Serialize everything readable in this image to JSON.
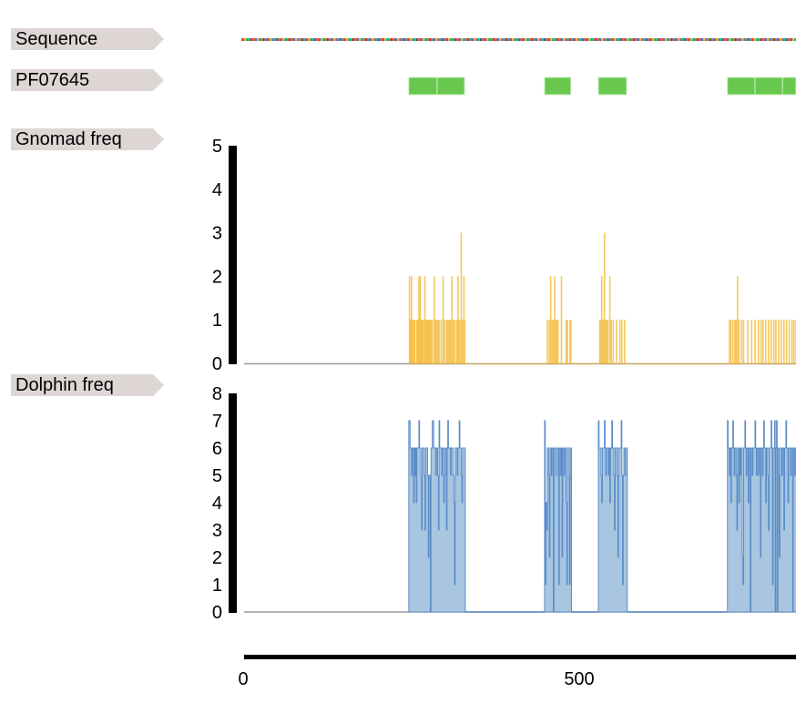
{
  "tracks": {
    "sequence": {
      "label": "Sequence"
    },
    "domain": {
      "label": "PF07645",
      "color": "#68c84e",
      "segments": [
        [
          245,
          287
        ],
        [
          287,
          328
        ],
        [
          447,
          486
        ],
        [
          527,
          569
        ],
        [
          719,
          760
        ],
        [
          760,
          801
        ],
        [
          801,
          821
        ]
      ]
    },
    "gnomad": {
      "label": "Gnomad freq",
      "color": "#f5bd42",
      "ylim": [
        0,
        5
      ],
      "yticks": [
        "0",
        "1",
        "2",
        "3",
        "4",
        "5"
      ],
      "bars": [
        [
          245,
          2
        ],
        [
          246,
          1
        ],
        [
          247,
          1
        ],
        [
          248,
          2
        ],
        [
          249,
          1
        ],
        [
          250,
          1
        ],
        [
          252,
          1
        ],
        [
          253,
          1
        ],
        [
          256,
          1
        ],
        [
          257,
          1
        ],
        [
          258,
          1
        ],
        [
          259,
          2
        ],
        [
          260,
          1
        ],
        [
          261,
          2
        ],
        [
          262,
          1
        ],
        [
          263,
          1
        ],
        [
          264,
          1
        ],
        [
          266,
          1
        ],
        [
          268,
          2
        ],
        [
          269,
          1
        ],
        [
          271,
          1
        ],
        [
          272,
          1
        ],
        [
          273,
          1
        ],
        [
          274,
          1
        ],
        [
          276,
          1
        ],
        [
          277,
          1
        ],
        [
          279,
          1
        ],
        [
          282,
          2
        ],
        [
          283,
          1
        ],
        [
          285,
          1
        ],
        [
          287,
          1
        ],
        [
          289,
          1
        ],
        [
          292,
          1
        ],
        [
          295,
          2
        ],
        [
          297,
          1
        ],
        [
          300,
          1
        ],
        [
          302,
          1
        ],
        [
          304,
          1
        ],
        [
          306,
          1
        ],
        [
          308,
          2
        ],
        [
          310,
          1
        ],
        [
          312,
          1
        ],
        [
          315,
          1
        ],
        [
          317,
          2
        ],
        [
          318,
          1
        ],
        [
          320,
          1
        ],
        [
          322,
          3
        ],
        [
          324,
          1
        ],
        [
          326,
          2
        ],
        [
          327,
          1
        ],
        [
          450,
          1
        ],
        [
          453,
          1
        ],
        [
          455,
          2
        ],
        [
          457,
          1
        ],
        [
          459,
          1
        ],
        [
          461,
          2
        ],
        [
          462,
          1
        ],
        [
          464,
          1
        ],
        [
          466,
          1
        ],
        [
          471,
          2
        ],
        [
          478,
          1
        ],
        [
          480,
          1
        ],
        [
          484,
          1
        ],
        [
          485,
          1
        ],
        [
          528,
          1
        ],
        [
          530,
          1
        ],
        [
          531,
          2
        ],
        [
          533,
          1
        ],
        [
          535,
          3
        ],
        [
          536,
          1
        ],
        [
          538,
          1
        ],
        [
          540,
          1
        ],
        [
          543,
          2
        ],
        [
          545,
          1
        ],
        [
          548,
          1
        ],
        [
          553,
          1
        ],
        [
          558,
          1
        ],
        [
          561,
          1
        ],
        [
          565,
          1
        ],
        [
          721,
          1
        ],
        [
          723,
          1
        ],
        [
          726,
          1
        ],
        [
          729,
          1
        ],
        [
          731,
          1
        ],
        [
          733,
          2
        ],
        [
          735,
          1
        ],
        [
          739,
          1
        ],
        [
          742,
          1
        ],
        [
          748,
          1
        ],
        [
          754,
          1
        ],
        [
          759,
          1
        ],
        [
          764,
          1
        ],
        [
          768,
          1
        ],
        [
          771,
          1
        ],
        [
          775,
          1
        ],
        [
          779,
          1
        ],
        [
          783,
          1
        ],
        [
          787,
          1
        ],
        [
          790,
          1
        ],
        [
          794,
          1
        ],
        [
          798,
          1
        ],
        [
          802,
          1
        ],
        [
          806,
          1
        ],
        [
          810,
          1
        ],
        [
          814,
          1
        ],
        [
          817,
          1
        ],
        [
          820,
          1
        ]
      ]
    },
    "dolphin": {
      "label": "Dolphin freq",
      "stroke": "#5b8cc9",
      "fill": "#a8c6e0",
      "ylim": [
        0,
        8
      ],
      "yticks": [
        "0",
        "1",
        "2",
        "3",
        "4",
        "5",
        "6",
        "7",
        "8"
      ],
      "segments": [
        {
          "start": 245,
          "values": [
            7,
            7,
            6,
            6,
            5,
            6,
            6,
            4,
            6,
            5,
            6,
            4,
            6,
            6,
            6,
            7,
            6,
            6,
            5,
            3,
            6,
            6,
            6,
            5,
            3,
            6,
            6,
            6,
            5,
            2,
            5,
            5,
            0,
            6,
            6,
            7,
            7,
            6,
            6,
            6,
            5,
            6,
            6,
            5,
            3,
            7,
            6,
            6,
            6,
            5,
            6,
            6,
            4,
            5,
            6,
            6,
            3,
            6,
            7,
            6,
            6,
            6,
            5,
            6,
            6,
            6,
            5,
            4,
            1,
            6,
            6,
            6,
            5,
            6,
            6,
            7,
            6,
            6,
            5,
            4,
            6,
            6,
            6,
            6
          ]
        },
        {
          "start": 447,
          "values": [
            7,
            1,
            4,
            3,
            6,
            6,
            5,
            2,
            6,
            6,
            5,
            6,
            6,
            0,
            6,
            6,
            6,
            5,
            5,
            6,
            6,
            1,
            6,
            6,
            5,
            6,
            2,
            6,
            6,
            5,
            6,
            6,
            4,
            1,
            6,
            6,
            6,
            1,
            5,
            6
          ]
        },
        {
          "start": 527,
          "values": [
            7,
            6,
            6,
            6,
            5,
            4,
            6,
            6,
            6,
            7,
            6,
            5,
            6,
            6,
            6,
            5,
            6,
            4,
            6,
            6,
            7,
            6,
            6,
            5,
            3,
            6,
            6,
            6,
            5,
            2,
            6,
            6,
            6,
            6,
            7,
            5,
            1,
            5,
            6,
            6,
            5,
            5,
            6
          ]
        },
        {
          "start": 719,
          "values": [
            7,
            6,
            6,
            5,
            6,
            4,
            6,
            6,
            7,
            6,
            5,
            6,
            6,
            5,
            3,
            6,
            6,
            4,
            6,
            5,
            6,
            6,
            2,
            1,
            6,
            6,
            7,
            6,
            5,
            6,
            6,
            4,
            6,
            6,
            0,
            6,
            6,
            5,
            6,
            6,
            6,
            7,
            6,
            5,
            6,
            6,
            5,
            6,
            6,
            2,
            6,
            6,
            5,
            6,
            7,
            6,
            6,
            4,
            6,
            6,
            5,
            3,
            6,
            6,
            6,
            7,
            6,
            1,
            6,
            6,
            7,
            0,
            6,
            7,
            0,
            6,
            6,
            2,
            5,
            6,
            6,
            5,
            6,
            6,
            3,
            6,
            6,
            7,
            6,
            6,
            4,
            6,
            6,
            6,
            5,
            6,
            6,
            0,
            6,
            6,
            5,
            6,
            6
          ]
        }
      ]
    }
  },
  "x_axis": {
    "range": [
      0,
      821
    ],
    "ticks": [
      "0",
      "500"
    ]
  }
}
